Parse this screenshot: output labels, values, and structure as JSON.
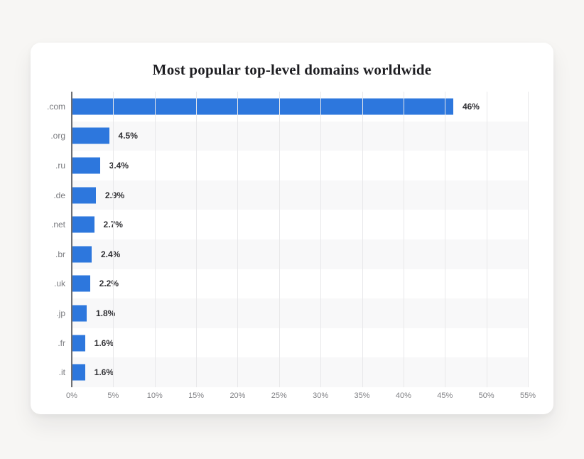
{
  "page": {
    "background": "#f7f6f4",
    "card_background": "#ffffff"
  },
  "chart_data": {
    "type": "bar",
    "orientation": "horizontal",
    "title": "Most popular top-level domains worldwide",
    "categories": [
      ".com",
      ".org",
      ".ru",
      ".de",
      ".net",
      ".br",
      ".uk",
      ".jp",
      ".fr",
      ".it"
    ],
    "values": [
      46,
      4.5,
      3.4,
      2.9,
      2.7,
      2.4,
      2.2,
      1.8,
      1.6,
      1.6
    ],
    "value_labels": [
      "46%",
      "4.5%",
      "3.4%",
      "2.9%",
      "2.7%",
      "2.4%",
      "2.2%",
      "1.8%",
      "1.6%",
      "1.6%"
    ],
    "x_ticks": [
      "0%",
      "5%",
      "10%",
      "15%",
      "20%",
      "25%",
      "30%",
      "35%",
      "40%",
      "45%",
      "50%",
      "55%"
    ],
    "xlim": [
      0,
      55
    ],
    "xlabel": "",
    "ylabel": "",
    "grid": true,
    "legend": false,
    "row_stripes": "alternating starting white",
    "colors": {
      "bar": "#2d77dd",
      "row_stripe": "#f8f8f9",
      "gridline": "#e8e8ea",
      "axis_line": "#6e6f73",
      "category_label": "#7b7c80",
      "value_label": "#2f2f33",
      "tick_label": "#808185",
      "title": "#1f1f23"
    }
  }
}
